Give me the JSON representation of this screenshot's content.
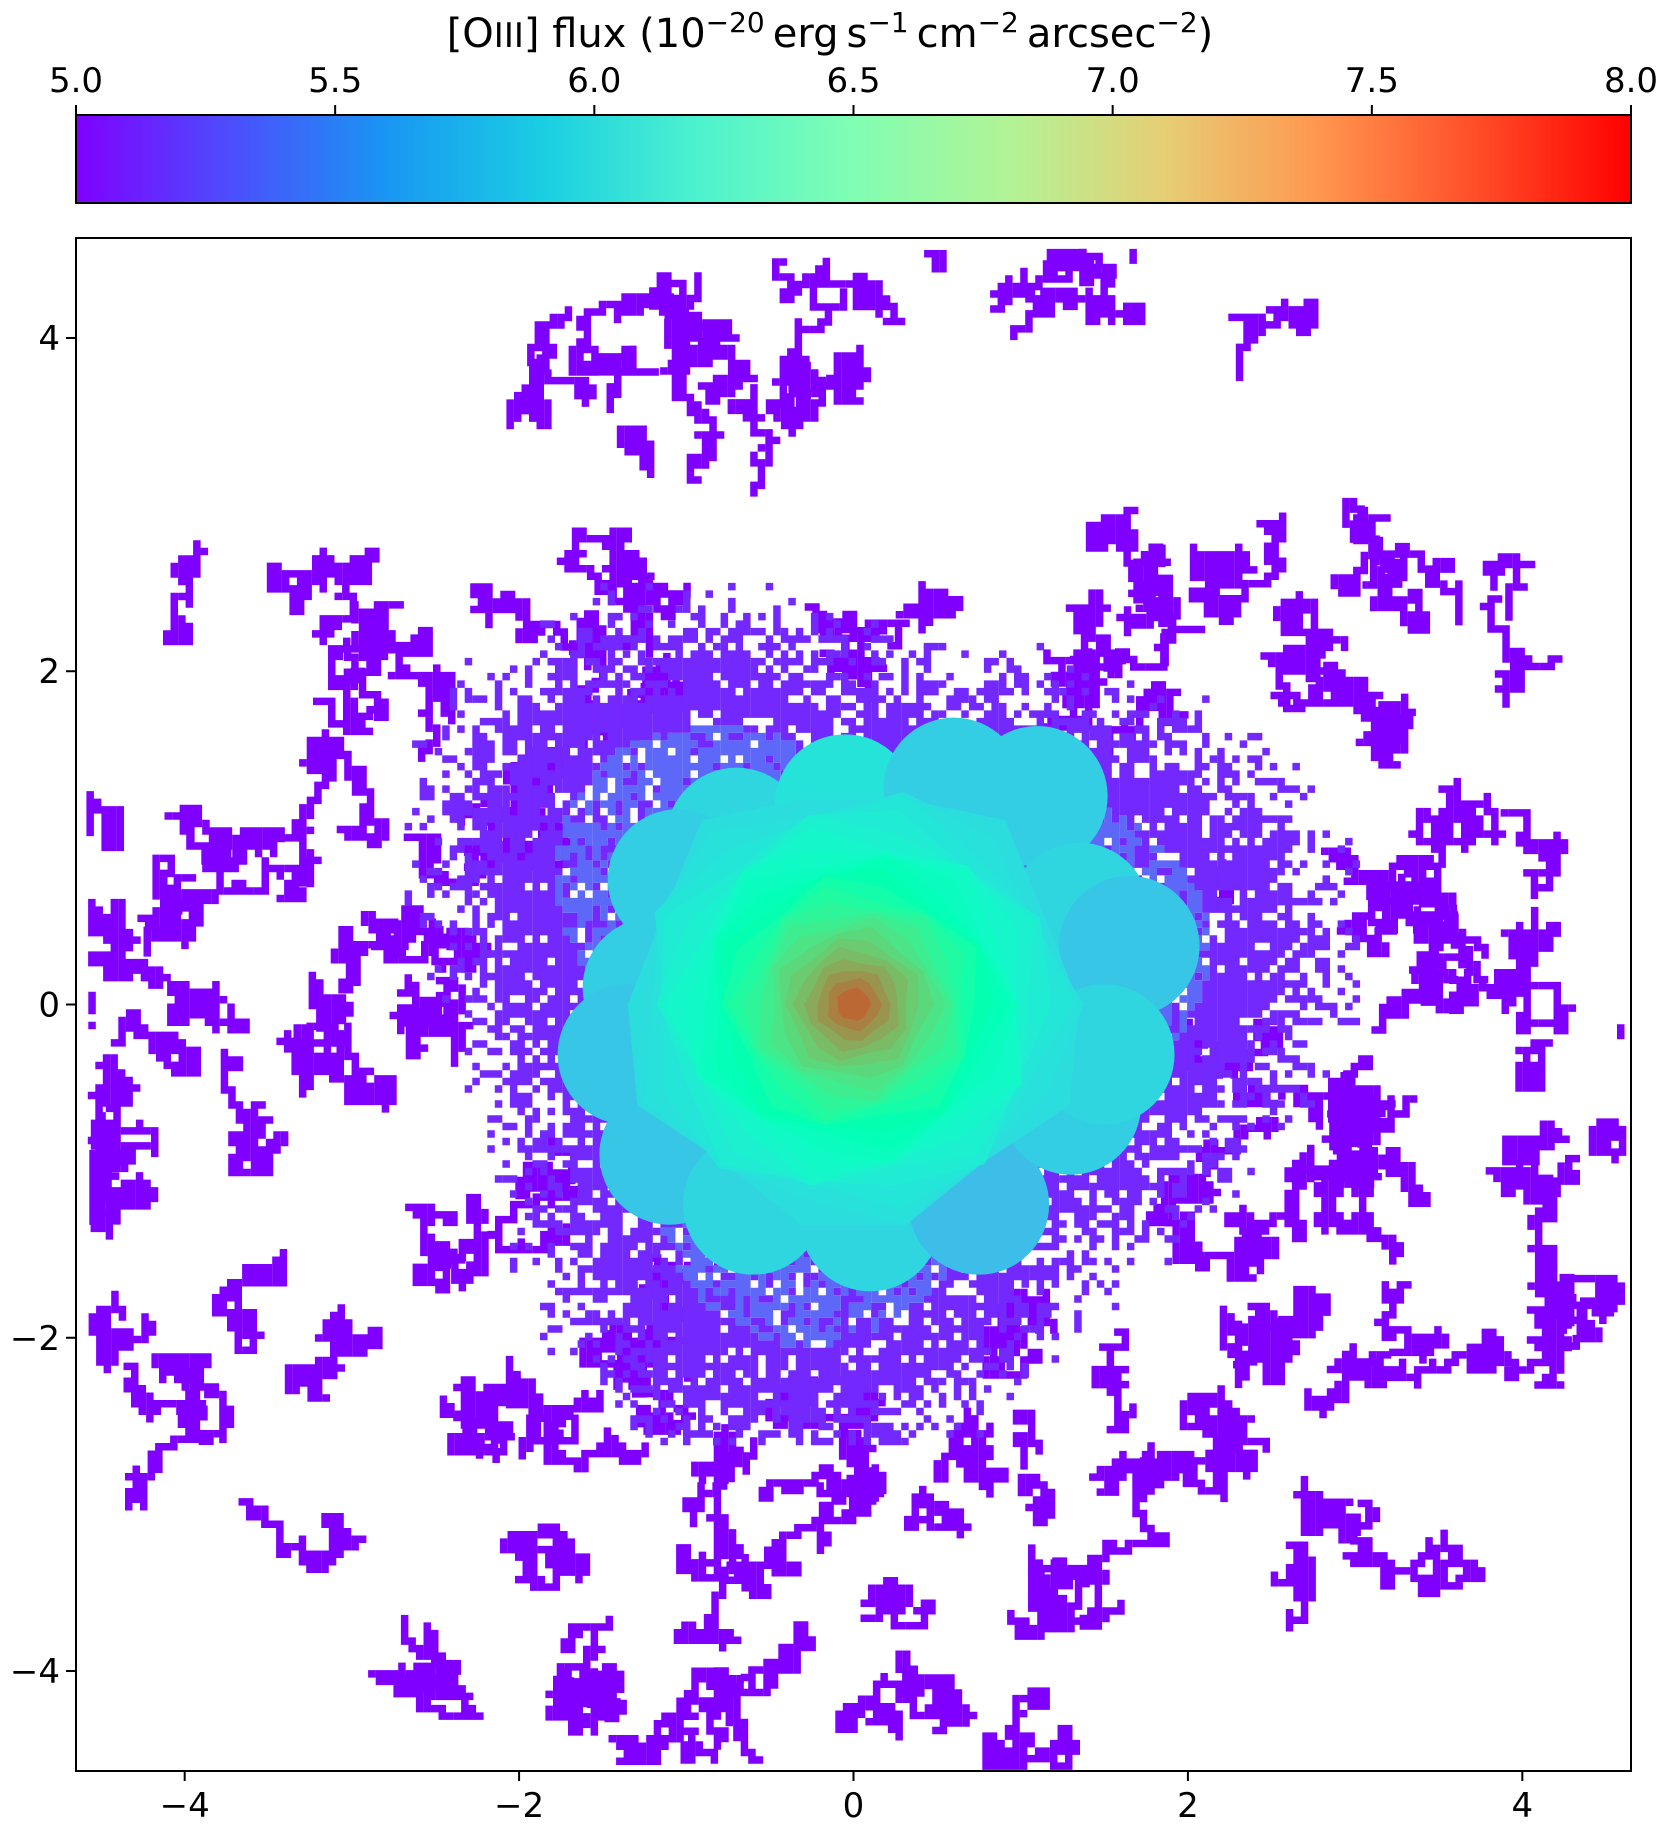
{
  "chart_data": {
    "type": "heatmap",
    "colorbar": {
      "title_parts": {
        "lead": "[O",
        "roman": "III",
        "mid": "] flux (10",
        "exp_flux": "−20",
        "erg": "erg",
        "s": "s",
        "exp_s": "−1",
        "cm": "cm",
        "exp_cm": "−2",
        "arcsec": "arcsec",
        "exp_arcsec": "−2",
        "close": ")"
      },
      "range": [
        5.0,
        8.0
      ],
      "ticks": [
        5.0,
        5.5,
        6.0,
        6.5,
        7.0,
        7.5,
        8.0
      ],
      "tick_labels": [
        "5.0",
        "5.5",
        "6.0",
        "6.5",
        "7.0",
        "7.5",
        "8.0"
      ],
      "colormap": "rainbow",
      "placement": "top"
    },
    "x_axis": {
      "label": "",
      "range": [
        -4.65,
        4.65
      ],
      "ticks": [
        -4,
        -2,
        0,
        2,
        4
      ],
      "tick_labels": [
        "−4",
        "−2",
        "0",
        "2",
        "4"
      ]
    },
    "y_axis": {
      "label": "",
      "range": [
        -4.6,
        4.6
      ],
      "ticks": [
        -4,
        -2,
        0,
        2,
        4
      ],
      "tick_labels": [
        "−4",
        "−2",
        "0",
        "2",
        "4"
      ]
    },
    "map": {
      "center": [
        0.0,
        0.0
      ],
      "peak_value": 7.6,
      "background_value": 5.0,
      "binned_core_radius": 1.8,
      "noise_extent_radius": 4.5,
      "voronoi_bins": [
        {
          "x": -0.7,
          "y": 1.0,
          "value": 5.95
        },
        {
          "x": -0.05,
          "y": 1.2,
          "value": 6.05
        },
        {
          "x": 0.6,
          "y": 1.3,
          "value": 5.9
        },
        {
          "x": 1.1,
          "y": 1.25,
          "value": 5.9
        },
        {
          "x": -1.05,
          "y": 0.75,
          "value": 5.9
        },
        {
          "x": 1.35,
          "y": 0.55,
          "value": 5.95
        },
        {
          "x": 1.65,
          "y": 0.35,
          "value": 5.85
        },
        {
          "x": -1.2,
          "y": 0.1,
          "value": 5.9
        },
        {
          "x": -1.35,
          "y": -0.3,
          "value": 5.85
        },
        {
          "x": -1.1,
          "y": -0.9,
          "value": 5.85
        },
        {
          "x": -0.6,
          "y": -1.2,
          "value": 5.95
        },
        {
          "x": 0.1,
          "y": -1.3,
          "value": 5.95
        },
        {
          "x": 0.75,
          "y": -1.2,
          "value": 5.8
        },
        {
          "x": 1.3,
          "y": -0.6,
          "value": 5.9
        },
        {
          "x": 1.5,
          "y": -0.3,
          "value": 5.95
        }
      ],
      "outer_ring_value": 5.4
    }
  }
}
